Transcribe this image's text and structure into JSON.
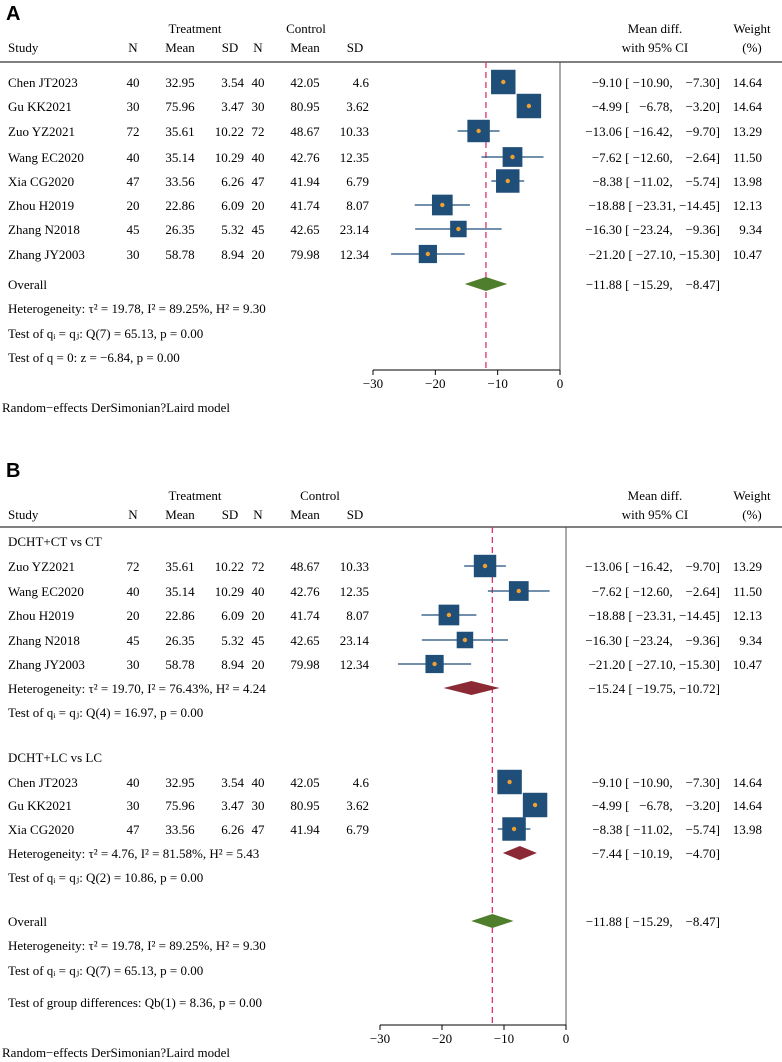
{
  "chart_data": [
    {
      "type": "forest",
      "panel": "A",
      "headers": {
        "study": "Study",
        "treatment": "Treatment",
        "control": "Control",
        "n": "N",
        "mean": "Mean",
        "sd": "SD",
        "mean_diff_line1": "Mean diff.",
        "mean_diff_line2": "with 95% CI",
        "weight_line1": "Weight",
        "weight_line2": "(%)"
      },
      "axis": {
        "xlim": [
          -30,
          0
        ],
        "ticks": [
          -30,
          -20,
          -10,
          0
        ],
        "tick_labels": [
          "−30",
          "−20",
          "−10",
          "0"
        ]
      },
      "groups": [
        {
          "label": "",
          "studies": [
            {
              "study": "Chen JT2023",
              "t_n": "40",
              "t_mean": "32.95",
              "t_sd": "3.54",
              "c_n": "40",
              "c_mean": "42.05",
              "c_sd": "4.6",
              "md": -9.1,
              "lo": -10.9,
              "hi": -7.3,
              "ci_text": "−9.10 [ −10.90,    −7.30]",
              "weight": "14.64"
            },
            {
              "study": "Gu KK2021",
              "t_n": "30",
              "t_mean": "75.96",
              "t_sd": "3.47",
              "c_n": "30",
              "c_mean": "80.95",
              "c_sd": "3.62",
              "md": -4.99,
              "lo": -6.78,
              "hi": -3.2,
              "ci_text": "−4.99 [   −6.78,    −3.20]",
              "weight": "14.64"
            },
            {
              "study": "Zuo YZ2021",
              "t_n": "72",
              "t_mean": "35.61",
              "t_sd": "10.22",
              "c_n": "72",
              "c_mean": "48.67",
              "c_sd": "10.33",
              "md": -13.06,
              "lo": -16.42,
              "hi": -9.7,
              "ci_text": "−13.06 [ −16.42,    −9.70]",
              "weight": "13.29"
            },
            {
              "study": "Wang EC2020",
              "t_n": "40",
              "t_mean": "35.14",
              "t_sd": "10.29",
              "c_n": "40",
              "c_mean": "42.76",
              "c_sd": "12.35",
              "md": -7.62,
              "lo": -12.6,
              "hi": -2.64,
              "ci_text": "−7.62 [ −12.60,    −2.64]",
              "weight": "11.50"
            },
            {
              "study": "Xia CG2020",
              "t_n": "47",
              "t_mean": "33.56",
              "t_sd": "6.26",
              "c_n": "47",
              "c_mean": "41.94",
              "c_sd": "6.79",
              "md": -8.38,
              "lo": -11.02,
              "hi": -5.74,
              "ci_text": "−8.38 [ −11.02,    −5.74]",
              "weight": "13.98"
            },
            {
              "study": "Zhou H2019",
              "t_n": "20",
              "t_mean": "22.86",
              "t_sd": "6.09",
              "c_n": "20",
              "c_mean": "41.74",
              "c_sd": "8.07",
              "md": -18.88,
              "lo": -23.31,
              "hi": -14.45,
              "ci_text": "−18.88 [ −23.31, −14.45]",
              "weight": "12.13"
            },
            {
              "study": "Zhang N2018",
              "t_n": "45",
              "t_mean": "26.35",
              "t_sd": "5.32",
              "c_n": "45",
              "c_mean": "42.65",
              "c_sd": "23.14",
              "md": -16.3,
              "lo": -23.24,
              "hi": -9.36,
              "ci_text": "−16.30 [ −23.24,    −9.36]",
              "weight": "9.34"
            },
            {
              "study": "Zhang JY2003",
              "t_n": "30",
              "t_mean": "58.78",
              "t_sd": "8.94",
              "c_n": "20",
              "c_mean": "79.98",
              "c_sd": "12.34",
              "md": -21.2,
              "lo": -27.1,
              "hi": -15.3,
              "ci_text": "−21.20 [ −27.10, −15.30]",
              "weight": "10.47"
            }
          ]
        }
      ],
      "overall": {
        "label": "Overall",
        "md": -11.88,
        "lo": -15.29,
        "hi": -8.47,
        "ci_text": "−11.88 [ −15.29,    −8.47]",
        "het": "Heterogeneity: τ² = 19.78, I² = 89.25%, H² = 9.30",
        "q_test": "Test of qᵢ = qⱼ: Q(7) = 65.13, p = 0.00",
        "z_test": "Test of q = 0: z = −6.84, p = 0.00"
      },
      "footnote": "Random−effects DerSimonian?Laird model",
      "colors": {
        "box": "#1f4e79",
        "dot": "#f0a030",
        "ci": "#1f4e79",
        "overall": "#4f7f2c",
        "refline": "#e0336a"
      }
    },
    {
      "type": "forest",
      "panel": "B",
      "headers": {
        "study": "Study",
        "treatment": "Treatment",
        "control": "Control",
        "n": "N",
        "mean": "Mean",
        "sd": "SD",
        "mean_diff_line1": "Mean diff.",
        "mean_diff_line2": "with 95% CI",
        "weight_line1": "Weight",
        "weight_line2": "(%)"
      },
      "axis": {
        "xlim": [
          -30,
          0
        ],
        "ticks": [
          -30,
          -20,
          -10,
          0
        ],
        "tick_labels": [
          "−30",
          "−20",
          "−10",
          "0"
        ]
      },
      "groups": [
        {
          "label": "DCHT+CT vs CT",
          "studies": [
            {
              "study": "Zuo YZ2021",
              "t_n": "72",
              "t_mean": "35.61",
              "t_sd": "10.22",
              "c_n": "72",
              "c_mean": "48.67",
              "c_sd": "10.33",
              "md": -13.06,
              "lo": -16.42,
              "hi": -9.7,
              "ci_text": "−13.06 [ −16.42,    −9.70]",
              "weight": "13.29"
            },
            {
              "study": "Wang EC2020",
              "t_n": "40",
              "t_mean": "35.14",
              "t_sd": "10.29",
              "c_n": "40",
              "c_mean": "42.76",
              "c_sd": "12.35",
              "md": -7.62,
              "lo": -12.6,
              "hi": -2.64,
              "ci_text": "−7.62 [ −12.60,    −2.64]",
              "weight": "11.50"
            },
            {
              "study": "Zhou H2019",
              "t_n": "20",
              "t_mean": "22.86",
              "t_sd": "6.09",
              "c_n": "20",
              "c_mean": "41.74",
              "c_sd": "8.07",
              "md": -18.88,
              "lo": -23.31,
              "hi": -14.45,
              "ci_text": "−18.88 [ −23.31, −14.45]",
              "weight": "12.13"
            },
            {
              "study": "Zhang N2018",
              "t_n": "45",
              "t_mean": "26.35",
              "t_sd": "5.32",
              "c_n": "45",
              "c_mean": "42.65",
              "c_sd": "23.14",
              "md": -16.3,
              "lo": -23.24,
              "hi": -9.36,
              "ci_text": "−16.30 [ −23.24,    −9.36]",
              "weight": "9.34"
            },
            {
              "study": "Zhang JY2003",
              "t_n": "30",
              "t_mean": "58.78",
              "t_sd": "8.94",
              "c_n": "20",
              "c_mean": "79.98",
              "c_sd": "12.34",
              "md": -21.2,
              "lo": -27.1,
              "hi": -15.3,
              "ci_text": "−21.20 [ −27.10, −15.30]",
              "weight": "10.47"
            }
          ],
          "summary": {
            "md": -15.24,
            "lo": -19.75,
            "hi": -10.72,
            "ci_text": "−15.24 [ −19.75, −10.72]",
            "het": "Heterogeneity: τ² = 19.70, I² = 76.43%, H² = 4.24",
            "q_test": "Test of qᵢ = qⱼ: Q(4) = 16.97, p = 0.00"
          }
        },
        {
          "label": "DCHT+LC vs LC",
          "studies": [
            {
              "study": "Chen JT2023",
              "t_n": "40",
              "t_mean": "32.95",
              "t_sd": "3.54",
              "c_n": "40",
              "c_mean": "42.05",
              "c_sd": "4.6",
              "md": -9.1,
              "lo": -10.9,
              "hi": -7.3,
              "ci_text": "−9.10 [ −10.90,    −7.30]",
              "weight": "14.64"
            },
            {
              "study": "Gu KK2021",
              "t_n": "30",
              "t_mean": "75.96",
              "t_sd": "3.47",
              "c_n": "30",
              "c_mean": "80.95",
              "c_sd": "3.62",
              "md": -4.99,
              "lo": -6.78,
              "hi": -3.2,
              "ci_text": "−4.99 [   −6.78,    −3.20]",
              "weight": "14.64"
            },
            {
              "study": "Xia CG2020",
              "t_n": "47",
              "t_mean": "33.56",
              "t_sd": "6.26",
              "c_n": "47",
              "c_mean": "41.94",
              "c_sd": "6.79",
              "md": -8.38,
              "lo": -11.02,
              "hi": -5.74,
              "ci_text": "−8.38 [ −11.02,    −5.74]",
              "weight": "13.98"
            }
          ],
          "summary": {
            "md": -7.44,
            "lo": -10.19,
            "hi": -4.7,
            "ci_text": "−7.44 [ −10.19,    −4.70]",
            "het": "Heterogeneity: τ² = 4.76, I² = 81.58%, H² = 5.43",
            "q_test": "Test of qᵢ = qⱼ: Q(2) = 10.86, p = 0.00"
          }
        }
      ],
      "overall": {
        "label": "Overall",
        "md": -11.88,
        "lo": -15.29,
        "hi": -8.47,
        "ci_text": "−11.88 [ −15.29,    −8.47]",
        "het": "Heterogeneity: τ² = 19.78, I² = 89.25%, H² = 9.30",
        "q_test": "Test of qᵢ = qⱼ: Q(7) = 65.13, p = 0.00",
        "group_test": "Test of group differences: Qb(1) = 8.36, p = 0.00"
      },
      "footnote": "Random−effects DerSimonian?Laird model",
      "colors": {
        "box": "#1f4e79",
        "dot": "#f0a030",
        "ci": "#1f4e79",
        "overall": "#4f7f2c",
        "subgroup": "#8b2a35",
        "refline": "#e0336a"
      }
    }
  ]
}
